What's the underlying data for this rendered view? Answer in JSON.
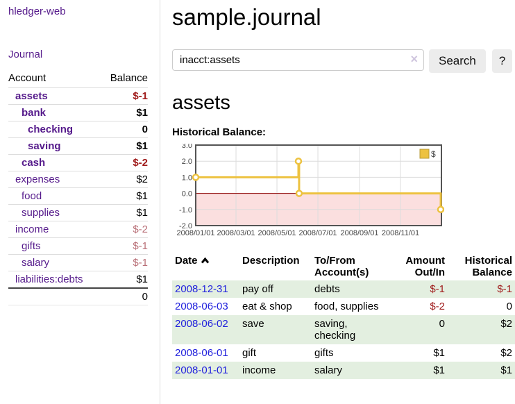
{
  "app": {
    "title": "hledger-web"
  },
  "sidebar": {
    "journal_link": "Journal",
    "accounts": {
      "header_account": "Account",
      "header_balance": "Balance",
      "rows": [
        {
          "account": "assets",
          "balance": "$-1",
          "acct_cls": "ind0 matched",
          "amt_cls": "neg matched"
        },
        {
          "account": "bank",
          "balance": "$1",
          "acct_cls": "ind1 matched",
          "amt_cls": "matched"
        },
        {
          "account": "checking",
          "balance": "0",
          "acct_cls": "ind2 matched",
          "amt_cls": "matched"
        },
        {
          "account": "saving",
          "balance": "$1",
          "acct_cls": "ind2 matched",
          "amt_cls": "matched"
        },
        {
          "account": "cash",
          "balance": "$-2",
          "acct_cls": "ind1 matched",
          "amt_cls": "neg matched"
        },
        {
          "account": "expenses",
          "balance": "$2",
          "acct_cls": "ind0",
          "amt_cls": ""
        },
        {
          "account": "food",
          "balance": "$1",
          "acct_cls": "ind1",
          "amt_cls": ""
        },
        {
          "account": "supplies",
          "balance": "$1",
          "acct_cls": "ind1",
          "amt_cls": ""
        },
        {
          "account": "income",
          "balance": "$-2",
          "acct_cls": "ind0",
          "amt_cls": "neg-soft"
        },
        {
          "account": "gifts",
          "balance": "$-1",
          "acct_cls": "ind1",
          "amt_cls": "neg-soft"
        },
        {
          "account": "salary",
          "balance": "$-1",
          "acct_cls": "ind1 blue",
          "amt_cls": "neg-soft"
        },
        {
          "account": "liabilities:debts",
          "balance": "$1",
          "acct_cls": "ind0",
          "amt_cls": ""
        }
      ],
      "total": "0"
    }
  },
  "main": {
    "title": "sample.journal",
    "search": {
      "value": "inacct:assets",
      "clear_icon": "×",
      "submit_label": "Search",
      "help_label": "?"
    },
    "account": {
      "title": "assets",
      "section_label": "Historical Balance:"
    }
  },
  "chart_data": {
    "type": "line",
    "subtype": "step",
    "title": "Historical Balance",
    "series": [
      {
        "name": "$",
        "color": "#edc240",
        "points": [
          [
            "2008-01-01",
            1
          ],
          [
            "2008-06-02",
            2
          ],
          [
            "2008-06-03",
            0
          ],
          [
            "2008-12-31",
            -1
          ]
        ]
      }
    ],
    "xlim": [
      "2008-01-01",
      "2009-01-01"
    ],
    "ylim": [
      -2,
      3
    ],
    "yticks": [
      3,
      2,
      1,
      0,
      -1,
      -2
    ],
    "ytick_labels": [
      "3.0",
      "2.0",
      "1.0",
      "0.0",
      "-1.0",
      "-2.0"
    ],
    "xticks": [
      "2008/01/01",
      "2008/03/01",
      "2008/05/01",
      "2008/07/01",
      "2008/09/01",
      "2008/11/01"
    ],
    "legend": {
      "position": "top-right",
      "label": "$"
    },
    "grid": true,
    "grid_color": "#dcdcdc",
    "negative_region_fill": "#fbdfdf",
    "zero_line_color": "#8b0000",
    "border_color": "#545454"
  },
  "register": {
    "sort_icon": "chevron-up-icon",
    "headers": [
      {
        "label": "Date",
        "sorted": "asc"
      },
      {
        "label": "Description"
      },
      {
        "label": "To/From Account(s)"
      },
      {
        "label": "Amount Out/In"
      },
      {
        "label": "Historical Balance"
      }
    ],
    "rows": [
      {
        "date": "2008-12-31",
        "description": "pay off",
        "accounts": "debts",
        "amount": "$-1",
        "amount_cls": "neg",
        "balance": "$-1",
        "balance_cls": "neg"
      },
      {
        "date": "2008-06-03",
        "description": "eat & shop",
        "accounts": "food, supplies",
        "amount": "$-2",
        "amount_cls": "neg",
        "balance": "0",
        "balance_cls": ""
      },
      {
        "date": "2008-06-02",
        "description": "save",
        "accounts": "saving, checking",
        "amount": "0",
        "amount_cls": "",
        "balance": "$2",
        "balance_cls": ""
      },
      {
        "date": "2008-06-01",
        "description": "gift",
        "accounts": "gifts",
        "amount": "$1",
        "amount_cls": "",
        "balance": "$2",
        "balance_cls": ""
      },
      {
        "date": "2008-01-01",
        "description": "income",
        "accounts": "salary",
        "amount": "$1",
        "amount_cls": "",
        "balance": "$1",
        "balance_cls": ""
      }
    ]
  }
}
